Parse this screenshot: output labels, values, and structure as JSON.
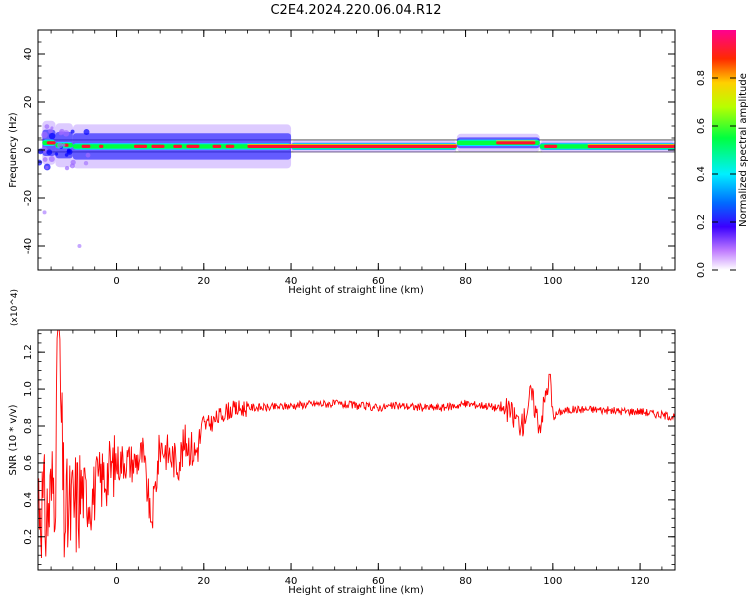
{
  "chart_data": [
    {
      "type": "heatmap",
      "title": "C2E4.2024.220.06.04.R12",
      "xlabel": "Height of straight line (km)",
      "ylabel": "Frequency (Hz)",
      "xlim": [
        -18,
        128
      ],
      "ylim": [
        -50,
        50
      ],
      "xticks": [
        0,
        20,
        40,
        60,
        80,
        100,
        120
      ],
      "yticks": [
        -40,
        -20,
        0,
        20,
        40
      ],
      "colorbar": {
        "label": "Normalized spectral amplitude",
        "range": [
          0,
          1
        ],
        "ticks": [
          "0.0",
          "0.2",
          "0.4",
          "0.6",
          "0.8"
        ]
      },
      "ridge": {
        "center_hz": 1.5,
        "segments": [
          {
            "x": [
              -17,
              -14
            ],
            "freq": 3
          },
          {
            "x": [
              -14,
              -10
            ],
            "freq": 2
          },
          {
            "x": [
              -10,
              40
            ],
            "freq": 1.5
          },
          {
            "x": [
              40,
              78
            ],
            "freq": 1.5
          },
          {
            "x": [
              78,
              97
            ],
            "freq": 3
          },
          {
            "x": [
              97,
              128
            ],
            "freq": 1.5
          }
        ]
      },
      "colors": {
        "magenta": "#ff00ff",
        "red": "#ff1030",
        "green": "#00ff40",
        "cyan": "#00e5ff",
        "blue": "#0000ff",
        "violet": "#9e6bff"
      }
    },
    {
      "type": "line",
      "xlabel": "Height of straight line (km)",
      "ylabel": "SNR (10 * v/v)",
      "multiplier": "(x10^4)",
      "xlim": [
        -18,
        128
      ],
      "ylim": [
        0.02,
        1.32
      ],
      "xticks": [
        0,
        20,
        40,
        60,
        80,
        100,
        120
      ],
      "yticks": [
        "0.2",
        "0.4",
        "0.6",
        "0.8",
        "1.0",
        "1.2"
      ],
      "series": [
        {
          "color": "#ff0000",
          "x": [
            -18,
            -16,
            -14,
            -13.3,
            -12,
            -10,
            -8,
            -6,
            -4,
            -2,
            0,
            2,
            4,
            6,
            8,
            10,
            12,
            14,
            16,
            18,
            20,
            22,
            25,
            30,
            35,
            40,
            45,
            50,
            55,
            60,
            65,
            70,
            75,
            80,
            85,
            90,
            93,
            95,
            97,
            99.3,
            100,
            102,
            105,
            110,
            115,
            120,
            125,
            128
          ],
          "values": [
            0.45,
            0.3,
            0.55,
            1.32,
            0.3,
            0.35,
            0.45,
            0.4,
            0.5,
            0.55,
            0.6,
            0.62,
            0.6,
            0.65,
            0.28,
            0.7,
            0.65,
            0.6,
            0.72,
            0.65,
            0.8,
            0.82,
            0.88,
            0.9,
            0.9,
            0.91,
            0.92,
            0.92,
            0.91,
            0.9,
            0.91,
            0.9,
            0.9,
            0.92,
            0.91,
            0.88,
            0.8,
            0.98,
            0.8,
            1.08,
            0.85,
            0.88,
            0.89,
            0.89,
            0.88,
            0.88,
            0.86,
            0.85
          ]
        }
      ]
    }
  ]
}
